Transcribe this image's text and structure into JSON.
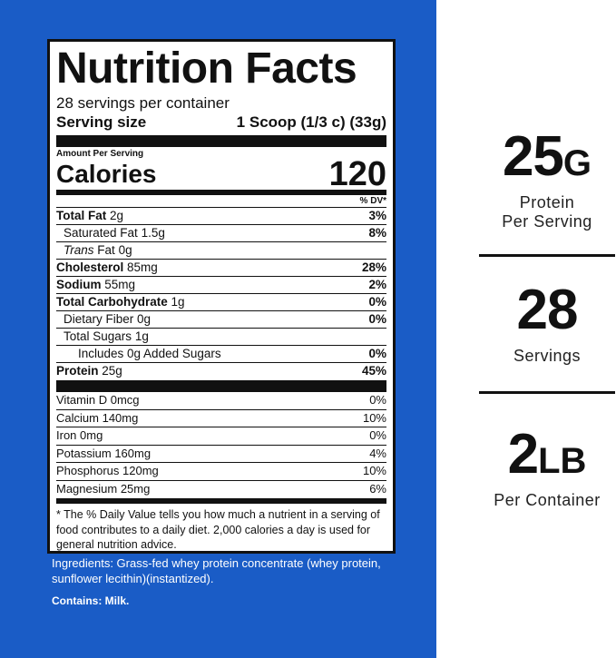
{
  "label": {
    "title": "Nutrition Facts",
    "servings_per_container": "28 servings per container",
    "serving_size_label": "Serving size",
    "serving_size_value": "1 Scoop (1/3 c) (33g)",
    "amount_per_serving": "Amount Per Serving",
    "calories_label": "Calories",
    "calories_value": "120",
    "dv_header": "% DV*",
    "nutrients": [
      {
        "name": "Total Fat",
        "amount": "2g",
        "dv": "3%"
      },
      {
        "name": "Saturated Fat",
        "amount": "1.5g",
        "dv": "8%"
      },
      {
        "name": "Trans",
        "name_suffix": "Fat",
        "amount": "0g",
        "dv": ""
      },
      {
        "name": "Cholesterol",
        "amount": "85mg",
        "dv": "28%"
      },
      {
        "name": "Sodium",
        "amount": "55mg",
        "dv": "2%"
      },
      {
        "name": "Total Carbohydrate",
        "amount": "1g",
        "dv": "0%"
      },
      {
        "name": "Dietary Fiber",
        "amount": "0g",
        "dv": "0%"
      },
      {
        "name": "Total Sugars",
        "amount": "1g",
        "dv": ""
      },
      {
        "name": "Includes 0g Added Sugars",
        "amount": "",
        "dv": "0%"
      },
      {
        "name": "Protein",
        "amount": "25g",
        "dv": "45%"
      }
    ],
    "vitamins": [
      {
        "name": "Vitamin D",
        "amount": "0mcg",
        "dv": "0%"
      },
      {
        "name": "Calcium",
        "amount": "140mg",
        "dv": "10%"
      },
      {
        "name": "Iron",
        "amount": "0mg",
        "dv": "0%"
      },
      {
        "name": "Potassium",
        "amount": "160mg",
        "dv": "4%"
      },
      {
        "name": "Phosphorus",
        "amount": "120mg",
        "dv": "10%"
      },
      {
        "name": "Magnesium",
        "amount": "25mg",
        "dv": "6%"
      }
    ],
    "footnote": "* The % Daily Value tells you how much a nutrient in a serving of food contributes to a daily diet. 2,000 calories a day is used for general nutrition advice."
  },
  "ingredients": "Ingredients: Grass-fed whey protein concentrate (whey protein, sunflower lecithin)(instantized).",
  "contains": "Contains: Milk.",
  "stats": [
    {
      "number": "25",
      "unit": "G",
      "caption_line1": "Protein",
      "caption_line2": "Per Serving"
    },
    {
      "number": "28",
      "unit": "",
      "caption_line1": "Servings",
      "caption_line2": ""
    },
    {
      "number": "2",
      "unit": "LB",
      "caption_line1": "Per Container",
      "caption_line2": ""
    }
  ],
  "colors": {
    "panel_blue": "#1a5cc6",
    "ink": "#111111",
    "background": "#ffffff"
  }
}
